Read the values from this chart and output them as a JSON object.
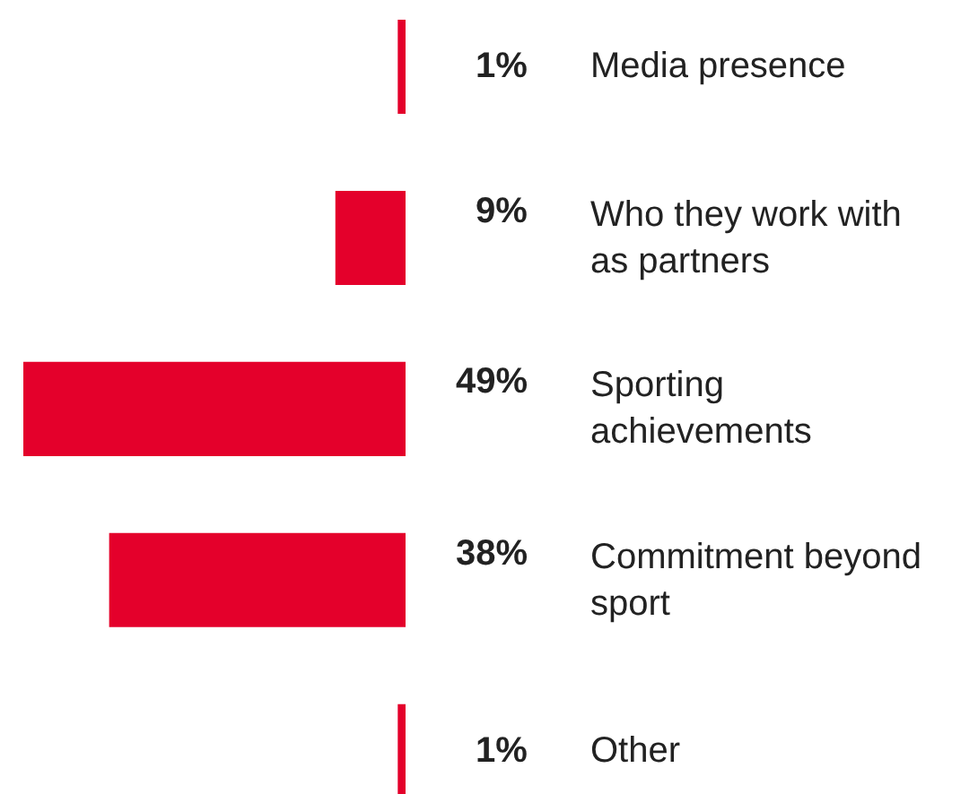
{
  "chart_data": {
    "type": "bar",
    "orientation": "horizontal",
    "categories": [
      "Media presence",
      "Who they work with as partners",
      "Sporting achievements",
      "Commitment beyond sport",
      "Other"
    ],
    "values": [
      1,
      9,
      49,
      38,
      1
    ],
    "value_labels": [
      "1%",
      "9%",
      "49%",
      "38%",
      "1%"
    ],
    "color": "#e4002b",
    "xlim": [
      49,
      0
    ],
    "grid": false,
    "legend": false
  }
}
